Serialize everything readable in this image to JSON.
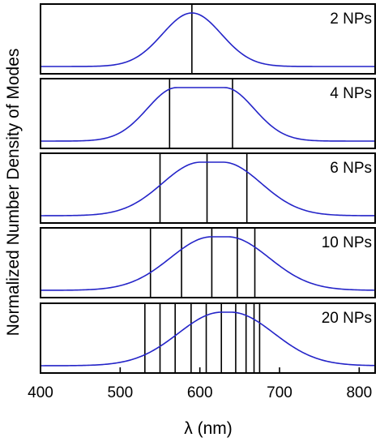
{
  "chart_data": {
    "type": "line",
    "xlabel": "λ (nm)",
    "ylabel": "Normalized Number Density of Modes",
    "xlim": [
      400,
      820
    ],
    "xticks": [
      "400",
      "500",
      "600",
      "700",
      "800"
    ],
    "xtick_values": [
      400,
      500,
      600,
      700,
      800
    ],
    "colors": {
      "curve": "#2424c8",
      "modes": "#000000"
    },
    "panels": [
      {
        "label": "2 NPs",
        "curve": {
          "peak": 590,
          "plateau_half_width": 0,
          "sigma": 37
        },
        "modes": [
          590
        ]
      },
      {
        "label": "4 NPs",
        "curve": {
          "peak": 601,
          "plateau_half_width": 30,
          "sigma": 37
        },
        "modes": [
          562,
          641
        ]
      },
      {
        "label": "6 NPs",
        "curve": {
          "peak": 615,
          "plateau_half_width": 14,
          "sigma": 48
        },
        "modes": [
          550,
          609,
          659
        ]
      },
      {
        "label": "10 NPs",
        "curve": {
          "peak": 625,
          "plateau_half_width": 10,
          "sigma": 52
        },
        "modes": [
          538,
          577,
          615,
          647,
          669
        ]
      },
      {
        "label": "20 NPs",
        "curve": {
          "peak": 633,
          "plateau_half_width": 6,
          "sigma": 54
        },
        "modes": [
          531,
          550,
          569,
          589,
          608,
          627,
          645,
          658,
          668,
          675
        ]
      }
    ]
  }
}
